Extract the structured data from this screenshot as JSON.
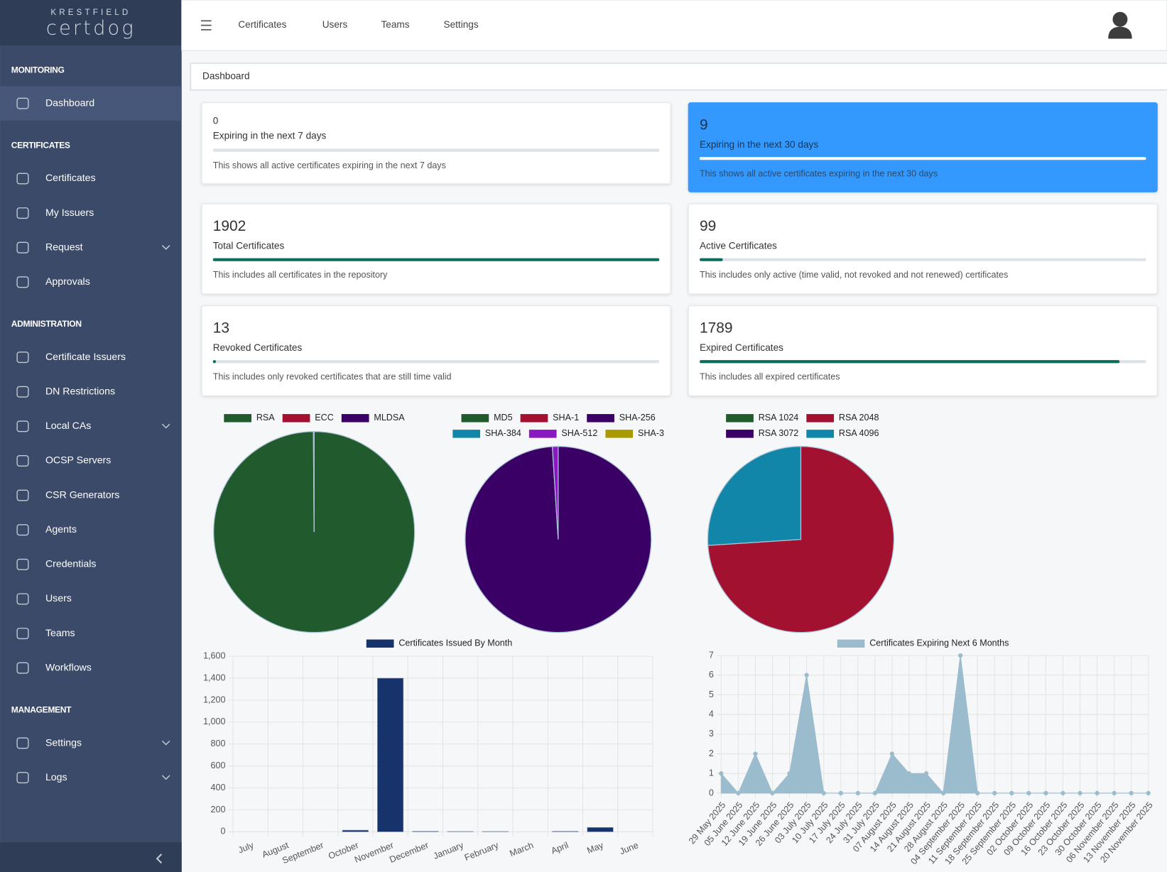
{
  "brand": {
    "company": "KRESTFIELD",
    "product": "certdog"
  },
  "topnav": [
    "Certificates",
    "Users",
    "Teams",
    "Settings"
  ],
  "sidebar": [
    {
      "title": "MONITORING",
      "items": [
        {
          "label": "Dashboard",
          "active": true
        }
      ]
    },
    {
      "title": "CERTIFICATES",
      "items": [
        {
          "label": "Certificates"
        },
        {
          "label": "My Issuers"
        },
        {
          "label": "Request",
          "expandable": true
        },
        {
          "label": "Approvals"
        }
      ]
    },
    {
      "title": "ADMINISTRATION",
      "items": [
        {
          "label": "Certificate Issuers"
        },
        {
          "label": "DN Restrictions"
        },
        {
          "label": "Local CAs",
          "expandable": true
        },
        {
          "label": "OCSP Servers"
        },
        {
          "label": "CSR Generators"
        },
        {
          "label": "Agents"
        },
        {
          "label": "Credentials"
        },
        {
          "label": "Users"
        },
        {
          "label": "Teams"
        },
        {
          "label": "Workflows"
        }
      ]
    },
    {
      "title": "MANAGEMENT",
      "items": [
        {
          "label": "Settings",
          "expandable": true
        },
        {
          "label": "Logs",
          "expandable": true
        }
      ]
    }
  ],
  "breadcrumb": "Dashboard",
  "cards": [
    {
      "value": 0,
      "label": "Expiring in the next 7 days",
      "description": "This shows all active certificates expiring in the next 7 days"
    },
    {
      "value": 9,
      "label": "Expiring in the next 30 days",
      "description": "This shows all active certificates expiring in the next 30 days",
      "highlight": true
    },
    {
      "value": 1902,
      "label": "Total Certificates",
      "description": "This includes all certificates in the repository"
    },
    {
      "value": 99,
      "label": "Active Certificates",
      "description": "This includes only active (time valid, not revoked and not renewed) certificates"
    },
    {
      "value": 13,
      "label": "Revoked Certificates",
      "description": "This includes only revoked certificates that are still time valid"
    },
    {
      "value": 1789,
      "label": "Expired Certificates",
      "description": "This includes all expired certificates"
    }
  ],
  "chart_data": [
    {
      "type": "pie",
      "categories": [
        "RSA",
        "ECC",
        "MLDSA"
      ],
      "values": [
        1900,
        1,
        1
      ],
      "colors": [
        "#215a2c",
        "#a31130",
        "#3a0066"
      ]
    },
    {
      "type": "pie",
      "categories": [
        "MD5",
        "SHA-1",
        "SHA-256",
        "SHA-384",
        "SHA-512",
        "SHA-3"
      ],
      "values": [
        0,
        0,
        1883,
        0,
        19,
        0
      ],
      "colors": [
        "#215a2c",
        "#a31130",
        "#3a0066",
        "#1286a8",
        "#8a18c0",
        "#a89a00"
      ]
    },
    {
      "type": "pie",
      "categories": [
        "RSA 1024",
        "RSA 2048",
        "RSA 3072",
        "RSA 4096"
      ],
      "values": [
        0,
        1407,
        0,
        495
      ],
      "colors": [
        "#215a2c",
        "#a31130",
        "#3a0066",
        "#1286a8"
      ]
    },
    {
      "type": "bar",
      "categories": [
        "July",
        "August",
        "September",
        "October",
        "November",
        "December",
        "January",
        "February",
        "March",
        "April",
        "May",
        "June"
      ],
      "series": [
        {
          "name": "Certificates Issued By Month",
          "color": "#17336b",
          "values": [
            0,
            0,
            0,
            15,
            1400,
            5,
            3,
            3,
            0,
            5,
            40,
            0
          ]
        }
      ],
      "ylim": [
        0,
        1600
      ],
      "yticks": [
        0,
        200,
        400,
        600,
        800,
        {
          "value": 1000,
          "label": "1,000"
        },
        {
          "value": 1200,
          "label": "1,200"
        },
        {
          "value": 1400,
          "label": "1,400"
        },
        {
          "value": 1600,
          "label": "1,600"
        }
      ],
      "grid": true
    },
    {
      "type": "area",
      "categories": [
        "29 May 2025",
        "05 June 2025",
        "12 June 2025",
        "19 June 2025",
        "26 June 2025",
        "03 July 2025",
        "10 July 2025",
        "17 July 2025",
        "24 July 2025",
        "31 July 2025",
        "07 August 2025",
        "14 August 2025",
        "21 August 2025",
        "28 August 2025",
        "04 September 2025",
        "11 September 2025",
        "18 September 2025",
        "25 September 2025",
        "02 October 2025",
        "09 October 2025",
        "16 October 2025",
        "23 October 2025",
        "30 October 2025",
        "06 November 2025",
        "13 November 2025",
        "20 November 2025"
      ],
      "series": [
        {
          "name": "Certificates Expiring Next 6 Months",
          "color": "#9bbccc",
          "values": [
            1,
            0,
            2,
            0,
            1,
            6,
            0,
            0,
            0,
            0,
            2,
            1,
            1,
            0,
            7,
            0,
            0,
            0,
            0,
            0,
            0,
            0,
            0,
            0,
            0,
            0
          ]
        }
      ],
      "ylim": [
        0,
        7
      ],
      "yticks": [
        0,
        1,
        2,
        3,
        4,
        5,
        6,
        7
      ],
      "grid": true
    }
  ]
}
